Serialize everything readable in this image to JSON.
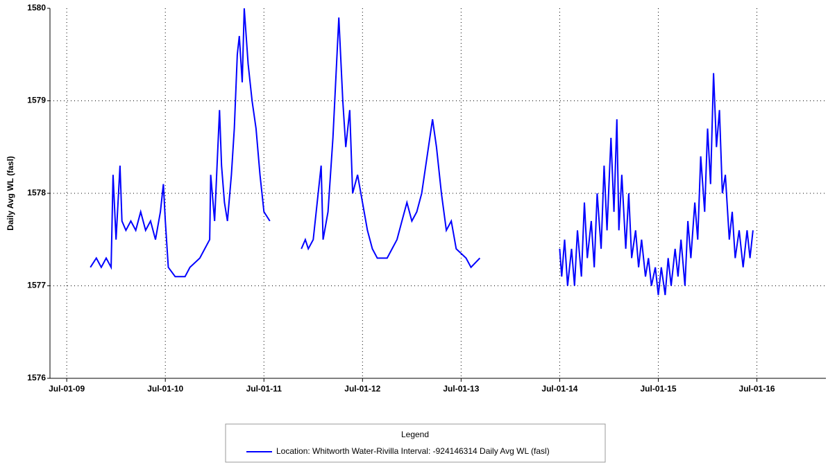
{
  "chart_data": {
    "type": "line",
    "y_label": "Daily Avg WL (fasl)",
    "legend_title": "Legend",
    "xlim": [
      2009.33,
      2017.2
    ],
    "xticks": [
      {
        "value": 2009.5,
        "label": "Jul-01-09"
      },
      {
        "value": 2010.5,
        "label": "Jul-01-10"
      },
      {
        "value": 2011.5,
        "label": "Jul-01-11"
      },
      {
        "value": 2012.5,
        "label": "Jul-01-12"
      },
      {
        "value": 2013.5,
        "label": "Jul-01-13"
      },
      {
        "value": 2014.5,
        "label": "Jul-01-14"
      },
      {
        "value": 2015.5,
        "label": "Jul-01-15"
      },
      {
        "value": 2016.5,
        "label": "Jul-01-16"
      }
    ],
    "ylim": [
      1576,
      1580
    ],
    "yticks": [
      1576,
      1577,
      1578,
      1579,
      1580
    ],
    "grid": true,
    "x": [
      2009.74,
      2009.8,
      2009.85,
      2009.9,
      2009.95,
      2009.97,
      2010.0,
      2010.04,
      2010.06,
      2010.1,
      2010.15,
      2010.2,
      2010.25,
      2010.3,
      2010.35,
      2010.4,
      2010.45,
      2010.48,
      2010.5,
      2010.53,
      2010.6,
      2010.7,
      2010.75,
      2010.85,
      2010.9,
      2010.95,
      2010.96,
      2011.0,
      2011.05,
      2011.07,
      2011.1,
      2011.13,
      2011.17,
      2011.2,
      2011.23,
      2011.25,
      2011.28,
      2011.3,
      2011.34,
      2011.38,
      2011.42,
      2011.46,
      2011.5,
      2011.56,
      2011.72,
      2011.88,
      2011.92,
      2011.95,
      2012.0,
      2012.08,
      2012.1,
      2012.15,
      2012.2,
      2012.26,
      2012.3,
      2012.33,
      2012.37,
      2012.4,
      2012.45,
      2012.5,
      2012.55,
      2012.6,
      2012.65,
      2012.75,
      2012.8,
      2012.85,
      2012.9,
      2012.95,
      2013.0,
      2013.05,
      2013.1,
      2013.21,
      2013.25,
      2013.3,
      2013.35,
      2013.4,
      2013.45,
      2013.55,
      2013.6,
      2013.69,
      2014.1,
      2014.5,
      2014.52,
      2014.55,
      2014.58,
      2014.62,
      2014.65,
      2014.68,
      2014.72,
      2014.75,
      2014.78,
      2014.82,
      2014.85,
      2014.88,
      2014.92,
      2014.95,
      2014.98,
      2015.02,
      2015.05,
      2015.08,
      2015.1,
      2015.13,
      2015.17,
      2015.2,
      2015.23,
      2015.27,
      2015.3,
      2015.33,
      2015.37,
      2015.4,
      2015.43,
      2015.47,
      2015.5,
      2015.53,
      2015.57,
      2015.6,
      2015.63,
      2015.67,
      2015.7,
      2015.73,
      2015.77,
      2015.8,
      2015.83,
      2015.87,
      2015.9,
      2015.93,
      2015.97,
      2016.0,
      2016.03,
      2016.06,
      2016.09,
      2016.12,
      2016.15,
      2016.18,
      2016.22,
      2016.25,
      2016.28,
      2016.32,
      2016.36,
      2016.4,
      2016.43,
      2016.46
    ],
    "series": [
      {
        "name": "Location: Whitworth Water-Rivilla Interval: -924146314 Daily Avg WL (fasl)",
        "color": "#0000ff",
        "values": [
          1577.2,
          1577.3,
          1577.2,
          1577.3,
          1577.2,
          1578.2,
          1577.5,
          1578.3,
          1577.7,
          1577.6,
          1577.7,
          1577.6,
          1577.8,
          1577.6,
          1577.7,
          1577.5,
          1577.8,
          1578.1,
          1577.7,
          1577.2,
          1577.1,
          1577.1,
          1577.2,
          1577.3,
          1577.4,
          1577.5,
          1578.2,
          1577.7,
          1578.9,
          1578.3,
          1577.9,
          1577.7,
          1578.2,
          1578.7,
          1579.5,
          1579.7,
          1579.2,
          1580.0,
          1579.4,
          1579.0,
          1578.7,
          1578.2,
          1577.8,
          1577.7,
          null,
          1577.4,
          1577.5,
          1577.4,
          1577.5,
          1578.3,
          1577.5,
          1577.8,
          1578.6,
          1579.9,
          1579.0,
          1578.5,
          1578.9,
          1578.0,
          1578.2,
          1577.9,
          1577.6,
          1577.4,
          1577.3,
          1577.3,
          1577.4,
          1577.5,
          1577.7,
          1577.9,
          1577.7,
          1577.8,
          1578.0,
          1578.8,
          1578.5,
          1578.0,
          1577.6,
          1577.7,
          1577.4,
          1577.3,
          1577.2,
          1577.3,
          null,
          1577.4,
          1577.1,
          1577.5,
          1577.0,
          1577.4,
          1577.0,
          1577.6,
          1577.1,
          1577.9,
          1577.3,
          1577.7,
          1577.2,
          1578.0,
          1577.4,
          1578.3,
          1577.6,
          1578.6,
          1577.8,
          1578.8,
          1577.6,
          1578.2,
          1577.4,
          1578.0,
          1577.3,
          1577.6,
          1577.2,
          1577.5,
          1577.1,
          1577.3,
          1577.0,
          1577.2,
          1576.9,
          1577.2,
          1576.9,
          1577.3,
          1577.0,
          1577.4,
          1577.1,
          1577.5,
          1577.0,
          1577.7,
          1577.3,
          1577.9,
          1577.5,
          1578.4,
          1577.8,
          1578.7,
          1578.1,
          1579.3,
          1578.5,
          1578.9,
          1578.0,
          1578.2,
          1577.5,
          1577.8,
          1577.3,
          1577.6,
          1577.2,
          1577.6,
          1577.3,
          1577.6
        ]
      }
    ]
  }
}
